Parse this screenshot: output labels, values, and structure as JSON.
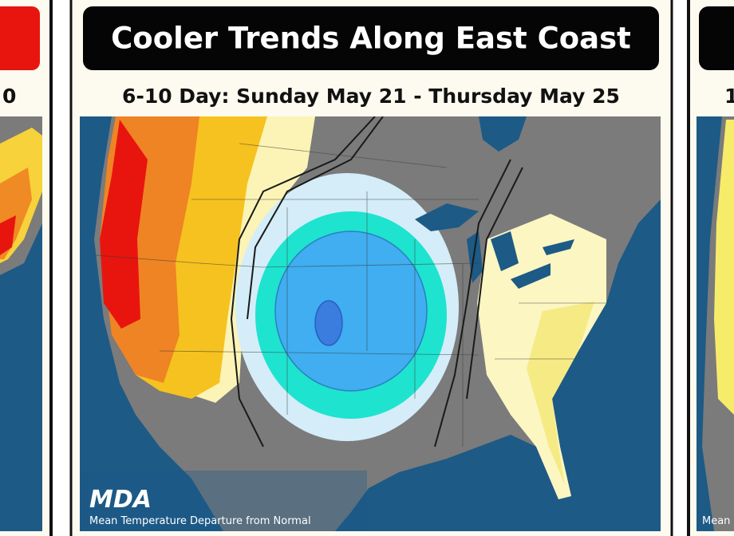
{
  "panels": [
    {
      "subtitle": "0"
    },
    {
      "title": "Cooler Trends Along East Coast",
      "subtitle": "6-10 Day: Sunday May 21 - Thursday May 25",
      "logo": "MDA",
      "footer": "Mean Temperature Departure from Normal"
    },
    {
      "subtitle": "1",
      "footer": "Mean"
    }
  ]
}
